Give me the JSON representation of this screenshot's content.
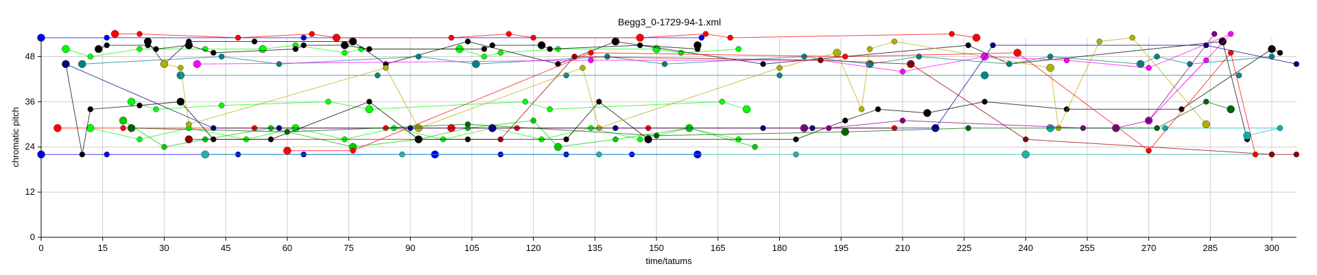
{
  "chart_data": {
    "type": "scatter",
    "title": "Begg3_0-1729-94-1.xml",
    "xlabel": "time/tatums",
    "ylabel": "chromatic pitch",
    "xlim": [
      0,
      306
    ],
    "ylim": [
      0,
      53
    ],
    "xticks": [
      0,
      15,
      30,
      45,
      60,
      75,
      90,
      105,
      120,
      135,
      150,
      165,
      180,
      195,
      210,
      225,
      240,
      255,
      270,
      285,
      300
    ],
    "yticks": [
      0,
      12,
      24,
      36,
      48
    ],
    "grid": true,
    "legend": "none",
    "series": [
      {
        "color": "#0000ff",
        "points": [
          [
            0,
            53
          ],
          [
            16,
            53
          ],
          [
            64,
            53
          ],
          [
            161,
            53
          ]
        ]
      },
      {
        "color": "#0000ff",
        "points": [
          [
            0,
            22
          ],
          [
            16,
            22
          ],
          [
            48,
            22
          ],
          [
            64,
            22
          ],
          [
            96,
            22
          ],
          [
            112,
            22
          ],
          [
            128,
            22
          ],
          [
            144,
            22
          ],
          [
            160,
            22
          ]
        ]
      },
      {
        "color": "#ff0000",
        "points": [
          [
            4,
            29
          ],
          [
            20,
            29
          ],
          [
            52,
            29
          ],
          [
            84,
            29
          ],
          [
            100,
            29
          ],
          [
            116,
            29
          ],
          [
            148,
            29
          ],
          [
            208,
            29
          ]
        ]
      },
      {
        "color": "#ff0000",
        "points": [
          [
            18,
            54
          ],
          [
            24,
            54
          ],
          [
            48,
            53
          ],
          [
            66,
            54
          ],
          [
            72,
            53
          ],
          [
            100,
            53
          ],
          [
            114,
            54
          ],
          [
            120,
            53
          ],
          [
            146,
            53
          ],
          [
            162,
            54
          ],
          [
            168,
            53
          ],
          [
            222,
            54
          ],
          [
            228,
            53
          ]
        ]
      },
      {
        "color": "#00ff00",
        "points": [
          [
            6,
            50
          ],
          [
            12,
            48
          ],
          [
            24,
            50
          ],
          [
            40,
            50
          ],
          [
            54,
            50
          ],
          [
            62,
            51
          ],
          [
            74,
            49
          ],
          [
            78,
            50
          ],
          [
            102,
            50
          ],
          [
            108,
            48
          ],
          [
            112,
            49
          ],
          [
            126,
            50
          ],
          [
            150,
            50
          ],
          [
            156,
            49
          ],
          [
            170,
            50
          ]
        ]
      },
      {
        "color": "#00ff00",
        "points": [
          [
            12,
            29
          ],
          [
            24,
            26
          ],
          [
            36,
            29
          ],
          [
            50,
            26
          ],
          [
            62,
            29
          ],
          [
            74,
            26
          ],
          [
            86,
            29
          ],
          [
            98,
            26
          ],
          [
            110,
            29
          ],
          [
            122,
            26
          ],
          [
            134,
            29
          ],
          [
            146,
            26
          ],
          [
            158,
            29
          ],
          [
            170,
            26
          ]
        ]
      },
      {
        "color": "#00ff00",
        "points": [
          [
            22,
            36
          ],
          [
            28,
            34
          ],
          [
            44,
            35
          ],
          [
            70,
            36
          ],
          [
            80,
            34
          ],
          [
            118,
            36
          ],
          [
            124,
            34
          ],
          [
            166,
            36
          ],
          [
            172,
            34
          ]
        ]
      },
      {
        "color": "#00cc00",
        "points": [
          [
            20,
            31
          ],
          [
            30,
            24
          ],
          [
            40,
            26
          ],
          [
            56,
            29
          ],
          [
            76,
            24
          ],
          [
            92,
            26
          ],
          [
            104,
            29
          ],
          [
            120,
            31
          ],
          [
            126,
            24
          ],
          [
            140,
            26
          ],
          [
            158,
            29
          ],
          [
            174,
            24
          ]
        ]
      },
      {
        "color": "#000000",
        "points": [
          [
            14,
            50
          ],
          [
            16,
            51
          ],
          [
            26,
            51
          ],
          [
            28,
            50
          ],
          [
            36,
            51
          ],
          [
            42,
            49
          ],
          [
            62,
            50
          ],
          [
            64,
            51
          ],
          [
            74,
            51
          ],
          [
            80,
            50
          ],
          [
            108,
            50
          ],
          [
            110,
            51
          ],
          [
            122,
            51
          ],
          [
            124,
            50
          ],
          [
            146,
            51
          ],
          [
            160,
            50
          ],
          [
            160,
            51
          ]
        ]
      },
      {
        "color": "#000000",
        "points": [
          [
            6,
            46
          ],
          [
            10,
            22
          ],
          [
            12,
            34
          ],
          [
            24,
            35
          ],
          [
            34,
            36
          ],
          [
            42,
            26
          ],
          [
            56,
            26
          ],
          [
            80,
            36
          ],
          [
            92,
            26
          ],
          [
            104,
            26
          ],
          [
            128,
            26
          ],
          [
            136,
            36
          ],
          [
            148,
            26
          ],
          [
            184,
            26
          ],
          [
            196,
            31
          ],
          [
            204,
            34
          ],
          [
            216,
            33
          ],
          [
            230,
            36
          ],
          [
            250,
            34
          ],
          [
            278,
            34
          ],
          [
            300,
            50
          ],
          [
            302,
            49
          ]
        ]
      },
      {
        "color": "#000000",
        "points": [
          [
            26,
            52
          ],
          [
            30,
            46
          ],
          [
            36,
            52
          ],
          [
            52,
            52
          ],
          [
            76,
            52
          ],
          [
            84,
            46
          ],
          [
            104,
            52
          ],
          [
            126,
            46
          ],
          [
            140,
            52
          ],
          [
            176,
            46
          ],
          [
            226,
            51
          ],
          [
            236,
            46
          ],
          [
            288,
            52
          ],
          [
            294,
            26
          ]
        ]
      },
      {
        "color": "#008080",
        "points": [
          [
            10,
            46
          ],
          [
            44,
            48
          ],
          [
            58,
            46
          ],
          [
            92,
            48
          ],
          [
            106,
            46
          ],
          [
            138,
            48
          ],
          [
            152,
            46
          ],
          [
            186,
            48
          ],
          [
            202,
            46
          ],
          [
            214,
            48
          ],
          [
            236,
            46
          ],
          [
            246,
            48
          ],
          [
            268,
            46
          ],
          [
            272,
            48
          ],
          [
            280,
            46
          ],
          [
            300,
            48
          ]
        ]
      },
      {
        "color": "#008b8b",
        "points": [
          [
            34,
            43
          ],
          [
            82,
            43
          ],
          [
            128,
            43
          ],
          [
            180,
            43
          ],
          [
            230,
            43
          ],
          [
            292,
            43
          ]
        ]
      },
      {
        "color": "#20b2aa",
        "points": [
          [
            40,
            22
          ],
          [
            88,
            22
          ],
          [
            136,
            22
          ],
          [
            184,
            22
          ],
          [
            240,
            22
          ],
          [
            300,
            22
          ]
        ]
      },
      {
        "color": "#00b0b0",
        "points": [
          [
            246,
            29
          ],
          [
            262,
            29
          ],
          [
            274,
            29
          ],
          [
            302,
            29
          ],
          [
            294,
            27
          ]
        ]
      },
      {
        "color": "#b0b000",
        "points": [
          [
            30,
            46
          ],
          [
            34,
            45
          ],
          [
            36,
            30
          ],
          [
            84,
            45
          ],
          [
            92,
            29
          ],
          [
            132,
            45
          ],
          [
            136,
            29
          ],
          [
            180,
            45
          ],
          [
            194,
            49
          ],
          [
            200,
            34
          ],
          [
            202,
            50
          ],
          [
            208,
            52
          ],
          [
            246,
            45
          ],
          [
            248,
            29
          ],
          [
            258,
            52
          ],
          [
            266,
            53
          ],
          [
            284,
            30
          ]
        ]
      },
      {
        "color": "#ff00ff",
        "points": [
          [
            38,
            46
          ],
          [
            134,
            47
          ],
          [
            190,
            47
          ],
          [
            210,
            44
          ],
          [
            230,
            48
          ],
          [
            250,
            47
          ],
          [
            270,
            45
          ],
          [
            290,
            54
          ],
          [
            270,
            31
          ],
          [
            284,
            47
          ]
        ]
      },
      {
        "color": "#8b0000",
        "points": [
          [
            36,
            26
          ],
          [
            112,
            26
          ],
          [
            130,
            48
          ],
          [
            190,
            47
          ],
          [
            212,
            46
          ],
          [
            240,
            26
          ],
          [
            300,
            22
          ],
          [
            306,
            22
          ]
        ]
      },
      {
        "color": "#ff0000",
        "points": [
          [
            60,
            23
          ],
          [
            76,
            23
          ],
          [
            134,
            49
          ],
          [
            196,
            48
          ],
          [
            238,
            49
          ],
          [
            270,
            23
          ],
          [
            290,
            49
          ],
          [
            296,
            22
          ]
        ]
      },
      {
        "color": "#000080",
        "points": [
          [
            6,
            46
          ],
          [
            42,
            29
          ],
          [
            58,
            29
          ],
          [
            90,
            29
          ],
          [
            110,
            29
          ],
          [
            140,
            29
          ],
          [
            176,
            29
          ],
          [
            188,
            29
          ],
          [
            218,
            29
          ],
          [
            232,
            51
          ],
          [
            284,
            51
          ],
          [
            306,
            46
          ]
        ]
      },
      {
        "color": "#800080",
        "points": [
          [
            186,
            29
          ],
          [
            192,
            29
          ],
          [
            210,
            31
          ],
          [
            254,
            29
          ],
          [
            262,
            29
          ],
          [
            270,
            31
          ],
          [
            286,
            54
          ]
        ]
      },
      {
        "color": "#006400",
        "points": [
          [
            22,
            29
          ],
          [
            60,
            28
          ],
          [
            104,
            30
          ],
          [
            150,
            27
          ],
          [
            196,
            28
          ],
          [
            226,
            29
          ],
          [
            272,
            29
          ],
          [
            284,
            36
          ],
          [
            290,
            34
          ]
        ]
      }
    ]
  }
}
